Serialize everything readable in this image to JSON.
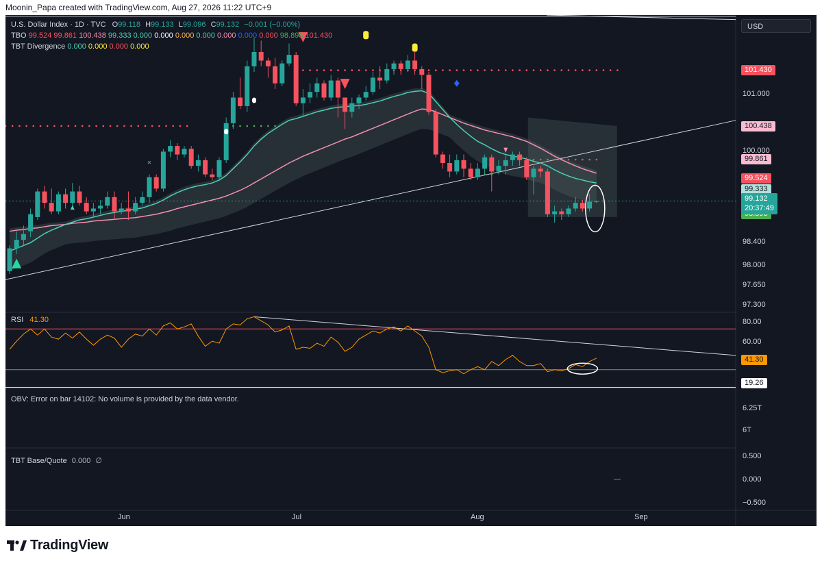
{
  "header": {
    "credit": "Moonin_Papa created with TradingView.com, Aug 27, 2026 11:22 UTC+9"
  },
  "legend": {
    "symbol_line": "U.S. Dollar Index · 1D · TVC",
    "ohlc": {
      "o_label": "O",
      "o": "99.118",
      "h_label": "H",
      "h": "99.133",
      "l_label": "L",
      "l": "99.096",
      "c_label": "C",
      "c": "99.132",
      "chg": "−0.001 (−0.00%)"
    },
    "tbo": {
      "label": "TBO",
      "values": [
        {
          "v": "99.524",
          "color": "#f7525f"
        },
        {
          "v": "99.861",
          "color": "#f7525f"
        },
        {
          "v": "100.438",
          "color": "#f48fb1"
        },
        {
          "v": "99.333",
          "color": "#4dd0b4"
        },
        {
          "v": "0.000",
          "color": "#4dd0b4"
        },
        {
          "v": "0.000",
          "color": "#ffffff"
        },
        {
          "v": "0.000",
          "color": "#ffb74d"
        },
        {
          "v": "0.000",
          "color": "#4dd0b4"
        },
        {
          "v": "0.000",
          "color": "#f48fb1"
        },
        {
          "v": "0.000",
          "color": "#2962ff"
        },
        {
          "v": "0.000",
          "color": "#f7525f"
        },
        {
          "v": "98.898",
          "color": "#4caf50"
        },
        {
          "v": "101.430",
          "color": "#f7525f"
        }
      ]
    },
    "divergence": {
      "label": "TBT Divergence",
      "values": [
        {
          "v": "0.000",
          "color": "#4dd0b4"
        },
        {
          "v": "0.000",
          "color": "#ffeb3b"
        },
        {
          "v": "0.000",
          "color": "#f7525f"
        },
        {
          "v": "0.000",
          "color": "#ffeb3b"
        }
      ]
    },
    "rsi_label": "RSI",
    "rsi_value": "41.30",
    "obv_text": "OBV: Error on bar 14102: No volume is provided by the data vendor.",
    "base_quote_label": "TBT Base/Quote",
    "base_quote_value": "0.000",
    "base_quote_extra": "∅"
  },
  "currency_button": "USD",
  "price_tags": [
    {
      "text": "101.430",
      "price": 101.43,
      "bg": "#f7525f",
      "fg": "#ffffff"
    },
    {
      "text": "100.438",
      "price": 100.438,
      "bg": "#f8bbd0",
      "fg": "#131722"
    },
    {
      "text": "99.861",
      "price": 99.861,
      "bg": "#f8bbd0",
      "fg": "#131722"
    },
    {
      "text": "99.524",
      "price": 99.524,
      "bg": "#f7525f",
      "fg": "#ffffff"
    },
    {
      "text": "99.333",
      "price": 99.333,
      "bg": "#b2dfdb",
      "fg": "#131722"
    },
    {
      "text": "98.898",
      "price": 98.898,
      "bg": "#4caf50",
      "fg": "#ffffff"
    }
  ],
  "current_price": {
    "price": "99.132",
    "countdown": "20:37:49",
    "color": "#26a69a"
  },
  "price_axis": {
    "ticks": [
      "101.000",
      "100.000",
      "98.400",
      "98.000",
      "97.650",
      "97.300"
    ]
  },
  "rsi_axis": {
    "ticks": [
      "80.00",
      "60.00"
    ],
    "tag": "41.30",
    "tag2": "19.26"
  },
  "obv_axis": {
    "ticks": [
      "6.25T",
      "6T"
    ]
  },
  "bq_axis": {
    "ticks": [
      "0.500",
      "0.000",
      "−0.500"
    ]
  },
  "time_axis": {
    "labels": [
      "Jun",
      "Jul",
      "Aug",
      "Sep"
    ]
  },
  "brand": "TradingView",
  "colors": {
    "up": "#26a69a",
    "down": "#f7525f",
    "background": "#131722",
    "rsi_line": "#ff9800",
    "ema_fast": "#4dd0b4",
    "ema_slow": "#f48fb1"
  },
  "chart_data": [
    {
      "type": "candlestick",
      "title": "U.S. Dollar Index · 1D · TVC",
      "ylim": [
        97.2,
        102.4
      ],
      "x_labels": [
        "Jun",
        "Jul",
        "Aug",
        "Sep"
      ],
      "candles": [
        [
          97.9,
          98.3,
          97.85,
          98.35
        ],
        [
          98.3,
          98.45,
          98.2,
          98.6
        ],
        [
          98.45,
          98.55,
          98.35,
          98.7
        ],
        [
          98.6,
          98.9,
          98.5,
          99.0
        ],
        [
          98.85,
          99.3,
          98.8,
          99.35
        ],
        [
          99.3,
          99.1,
          99.0,
          99.4
        ],
        [
          99.1,
          98.95,
          98.9,
          99.35
        ],
        [
          98.95,
          99.25,
          98.9,
          99.3
        ],
        [
          99.25,
          99.1,
          99.0,
          99.35
        ],
        [
          99.1,
          99.3,
          99.0,
          99.45
        ],
        [
          99.3,
          99.1,
          99.05,
          99.4
        ],
        [
          99.1,
          98.95,
          98.9,
          99.2
        ],
        [
          98.95,
          99.0,
          98.85,
          99.1
        ],
        [
          99.0,
          99.05,
          98.9,
          99.15
        ],
        [
          99.05,
          99.2,
          99.0,
          99.3
        ],
        [
          99.2,
          98.95,
          98.8,
          99.3
        ],
        [
          98.95,
          99.0,
          98.9,
          99.1
        ],
        [
          99.0,
          98.95,
          98.8,
          99.3
        ],
        [
          98.95,
          99.1,
          98.9,
          99.2
        ],
        [
          99.1,
          99.2,
          99.05,
          99.3
        ],
        [
          99.2,
          99.55,
          99.1,
          99.6
        ],
        [
          99.55,
          99.35,
          99.3,
          99.6
        ],
        [
          99.35,
          100.0,
          99.3,
          100.05
        ],
        [
          100.0,
          100.1,
          99.9,
          100.2
        ],
        [
          100.1,
          99.95,
          99.85,
          100.15
        ],
        [
          99.95,
          100.05,
          99.9,
          100.1
        ],
        [
          100.05,
          99.75,
          99.7,
          100.1
        ],
        [
          99.75,
          99.85,
          99.65,
          99.95
        ],
        [
          99.85,
          99.6,
          99.55,
          99.9
        ],
        [
          99.6,
          99.55,
          99.5,
          99.7
        ],
        [
          99.55,
          99.85,
          99.5,
          99.9
        ],
        [
          99.85,
          100.5,
          99.8,
          100.6
        ],
        [
          100.5,
          100.95,
          100.4,
          101.05
        ],
        [
          100.95,
          100.8,
          100.75,
          101.3
        ],
        [
          100.8,
          101.5,
          100.7,
          101.6
        ],
        [
          101.5,
          101.75,
          101.4,
          102.0
        ],
        [
          101.75,
          101.6,
          101.5,
          101.95
        ],
        [
          101.6,
          101.5,
          101.3,
          101.65
        ],
        [
          101.5,
          101.2,
          101.1,
          101.65
        ],
        [
          101.2,
          101.55,
          101.15,
          101.6
        ],
        [
          101.55,
          101.7,
          101.5,
          101.9
        ],
        [
          101.7,
          100.85,
          100.8,
          101.75
        ],
        [
          100.85,
          100.95,
          100.6,
          101.1
        ],
        [
          100.95,
          101.05,
          100.85,
          101.2
        ],
        [
          101.05,
          101.2,
          100.95,
          101.3
        ],
        [
          101.2,
          100.95,
          100.9,
          101.25
        ],
        [
          100.95,
          101.25,
          100.9,
          101.35
        ],
        [
          101.25,
          100.95,
          100.6,
          101.3
        ],
        [
          100.95,
          100.7,
          100.4,
          100.95
        ],
        [
          100.7,
          100.85,
          100.6,
          100.95
        ],
        [
          100.85,
          100.95,
          100.75,
          101.0
        ],
        [
          100.95,
          101.05,
          100.9,
          101.15
        ],
        [
          101.05,
          101.3,
          101.0,
          101.4
        ],
        [
          101.3,
          101.25,
          101.1,
          101.5
        ],
        [
          101.25,
          101.45,
          101.2,
          101.55
        ],
        [
          101.45,
          101.55,
          101.35,
          101.6
        ],
        [
          101.55,
          101.45,
          101.35,
          101.6
        ],
        [
          101.45,
          101.6,
          101.4,
          101.7
        ],
        [
          101.6,
          101.45,
          101.35,
          101.75
        ],
        [
          101.45,
          101.35,
          101.1,
          101.5
        ],
        [
          101.35,
          100.7,
          100.65,
          101.4
        ],
        [
          100.7,
          99.95,
          99.9,
          100.75
        ],
        [
          99.95,
          99.8,
          99.7,
          100.0
        ],
        [
          99.8,
          99.65,
          99.55,
          99.95
        ],
        [
          99.65,
          99.85,
          99.6,
          99.95
        ],
        [
          99.85,
          99.7,
          99.55,
          99.95
        ],
        [
          99.7,
          99.55,
          99.5,
          99.8
        ],
        [
          99.55,
          99.7,
          99.5,
          99.8
        ],
        [
          99.7,
          99.9,
          99.6,
          99.95
        ],
        [
          99.9,
          99.65,
          99.3,
          99.95
        ],
        [
          99.65,
          99.75,
          99.6,
          99.85
        ],
        [
          99.75,
          99.85,
          99.6,
          99.95
        ],
        [
          99.85,
          99.95,
          99.75,
          100.0
        ],
        [
          99.95,
          99.85,
          99.75,
          100.0
        ],
        [
          99.85,
          99.55,
          99.5,
          99.9
        ],
        [
          99.55,
          99.7,
          99.25,
          99.75
        ],
        [
          99.7,
          99.65,
          99.55,
          99.75
        ],
        [
          99.65,
          98.9,
          98.85,
          99.7
        ],
        [
          98.9,
          98.95,
          98.75,
          99.05
        ],
        [
          98.95,
          98.9,
          98.8,
          99.0
        ],
        [
          98.9,
          99.0,
          98.85,
          99.05
        ],
        [
          99.0,
          99.1,
          98.95,
          99.2
        ],
        [
          99.1,
          99.0,
          98.95,
          99.15
        ],
        [
          99.0,
          99.12,
          98.95,
          99.25
        ],
        [
          99.12,
          99.13,
          99.1,
          99.14
        ]
      ],
      "series": [
        {
          "name": "TBO fast",
          "values": [
            98.25,
            98.3,
            98.35,
            98.4,
            98.48,
            98.56,
            98.62,
            98.67,
            98.72,
            98.76,
            98.8,
            98.82,
            98.85,
            98.88,
            98.91,
            98.93,
            98.95,
            98.97,
            98.99,
            99.01,
            99.05,
            99.09,
            99.15,
            99.22,
            99.28,
            99.33,
            99.37,
            99.4,
            99.42,
            99.45,
            99.5,
            99.58,
            99.7,
            99.82,
            99.95,
            100.1,
            100.22,
            100.32,
            100.4,
            100.48,
            100.55,
            100.58,
            100.62,
            100.66,
            100.7,
            100.73,
            100.76,
            100.78,
            100.79,
            100.8,
            100.81,
            100.83,
            100.86,
            100.89,
            100.93,
            100.97,
            101.0,
            101.04,
            101.06,
            101.07,
            101.02,
            100.88,
            100.74,
            100.6,
            100.48,
            100.37,
            100.27,
            100.18,
            100.12,
            100.05,
            99.99,
            99.95,
            99.92,
            99.9,
            99.87,
            99.83,
            99.8,
            99.75,
            99.68,
            99.62,
            99.57,
            99.53,
            99.5,
            99.47,
            99.45
          ]
        },
        {
          "name": "TBO slow",
          "values": [
            98.6,
            98.62,
            98.63,
            98.65,
            98.66,
            98.68,
            98.7,
            98.71,
            98.72,
            98.74,
            98.75,
            98.76,
            98.78,
            98.79,
            98.8,
            98.81,
            98.82,
            98.83,
            98.84,
            98.86,
            98.88,
            98.9,
            98.93,
            98.96,
            99.0,
            99.03,
            99.06,
            99.09,
            99.12,
            99.15,
            99.18,
            99.22,
            99.27,
            99.32,
            99.38,
            99.45,
            99.52,
            99.59,
            99.66,
            99.73,
            99.8,
            99.86,
            99.92,
            99.97,
            100.02,
            100.07,
            100.12,
            100.17,
            100.22,
            100.26,
            100.31,
            100.36,
            100.41,
            100.46,
            100.51,
            100.56,
            100.61,
            100.66,
            100.71,
            100.75,
            100.74,
            100.7,
            100.65,
            100.6,
            100.55,
            100.5,
            100.46,
            100.42,
            100.38,
            100.35,
            100.32,
            100.29,
            100.26,
            100.22,
            100.18,
            100.12,
            100.06,
            99.99,
            99.92,
            99.86,
            99.8,
            99.75,
            99.7,
            99.66,
            99.62
          ]
        }
      ]
    },
    {
      "type": "line",
      "title": "RSI",
      "ylim": [
        15,
        85
      ],
      "series": [
        {
          "name": "RSI",
          "values": [
            50,
            58,
            65,
            70,
            64,
            70,
            62,
            60,
            66,
            61,
            67,
            60,
            54,
            60,
            64,
            61,
            52,
            60,
            65,
            63,
            70,
            64,
            73,
            76,
            70,
            72,
            75,
            63,
            53,
            58,
            56,
            70,
            75,
            74,
            80,
            82,
            78,
            74,
            67,
            69,
            73,
            50,
            52,
            51,
            56,
            53,
            62,
            57,
            48,
            52,
            60,
            64,
            68,
            66,
            70,
            72,
            68,
            73,
            68,
            63,
            52,
            30,
            27,
            29,
            30,
            26,
            30,
            33,
            30,
            38,
            34,
            40,
            44,
            38,
            34,
            34,
            36,
            28,
            30,
            29,
            31,
            35,
            33,
            38,
            41.3
          ]
        }
      ]
    }
  ]
}
